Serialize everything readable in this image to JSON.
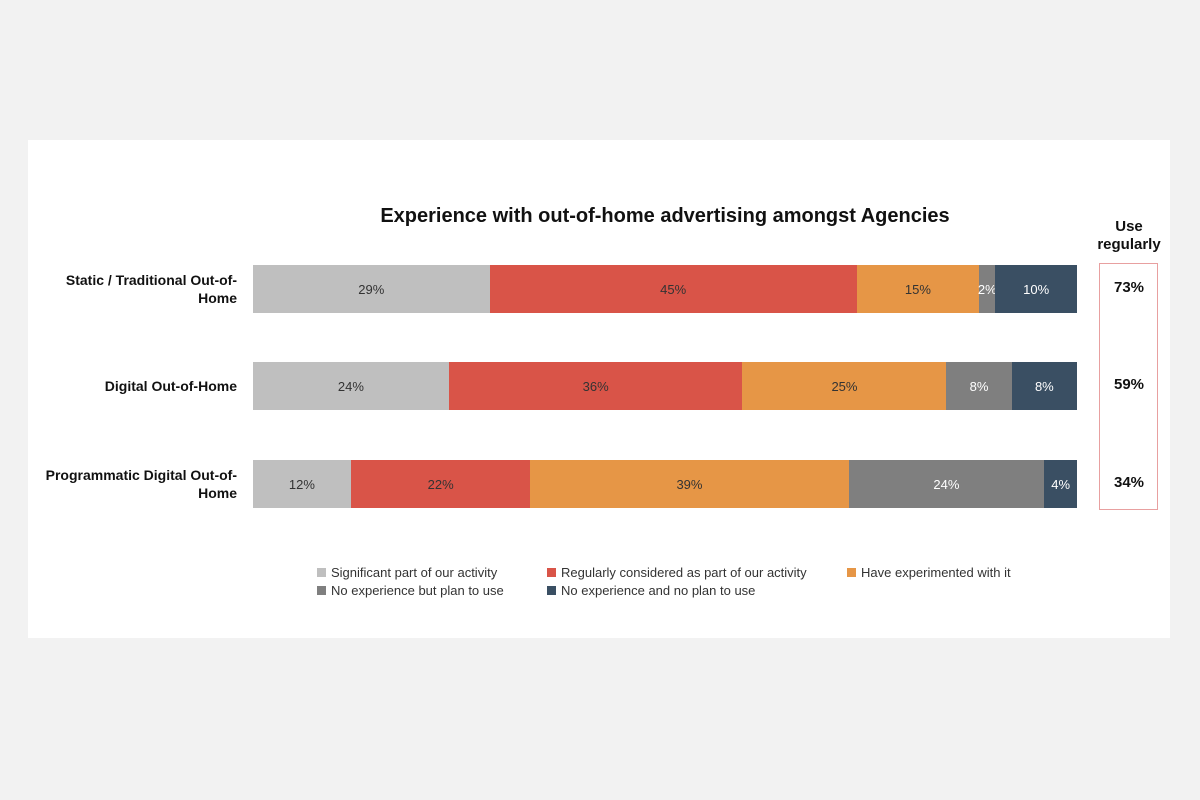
{
  "chart_data": {
    "type": "bar",
    "orientation": "horizontal-stacked-100",
    "title": "Experience with out-of-home advertising amongst Agencies",
    "categories": [
      "Static / Traditional Out-of-Home",
      "Digital Out-of-Home",
      "Programmatic Digital Out-of-Home"
    ],
    "series": [
      {
        "name": "Significant part of our activity",
        "color": "#bfbfbf",
        "text_color": "#333333",
        "values": [
          29,
          24,
          12
        ]
      },
      {
        "name": "Regularly considered as part of our activity",
        "color": "#d95448",
        "text_color": "#333333",
        "values": [
          45,
          36,
          22
        ]
      },
      {
        "name": "Have experimented with it",
        "color": "#e69646",
        "text_color": "#333333",
        "values": [
          15,
          25,
          39
        ]
      },
      {
        "name": "No experience but plan to use",
        "color": "#7f7f7f",
        "text_color": "#ffffff",
        "values": [
          2,
          8,
          24
        ]
      },
      {
        "name": "No experience and no plan to use",
        "color": "#3a4f63",
        "text_color": "#ffffff",
        "values": [
          10,
          8,
          4
        ]
      }
    ],
    "value_suffix": "%",
    "legend_position": "bottom",
    "grid": false,
    "use_regularly": {
      "title": "Use regularly",
      "values": [
        "73%",
        "59%",
        "34%"
      ]
    }
  }
}
